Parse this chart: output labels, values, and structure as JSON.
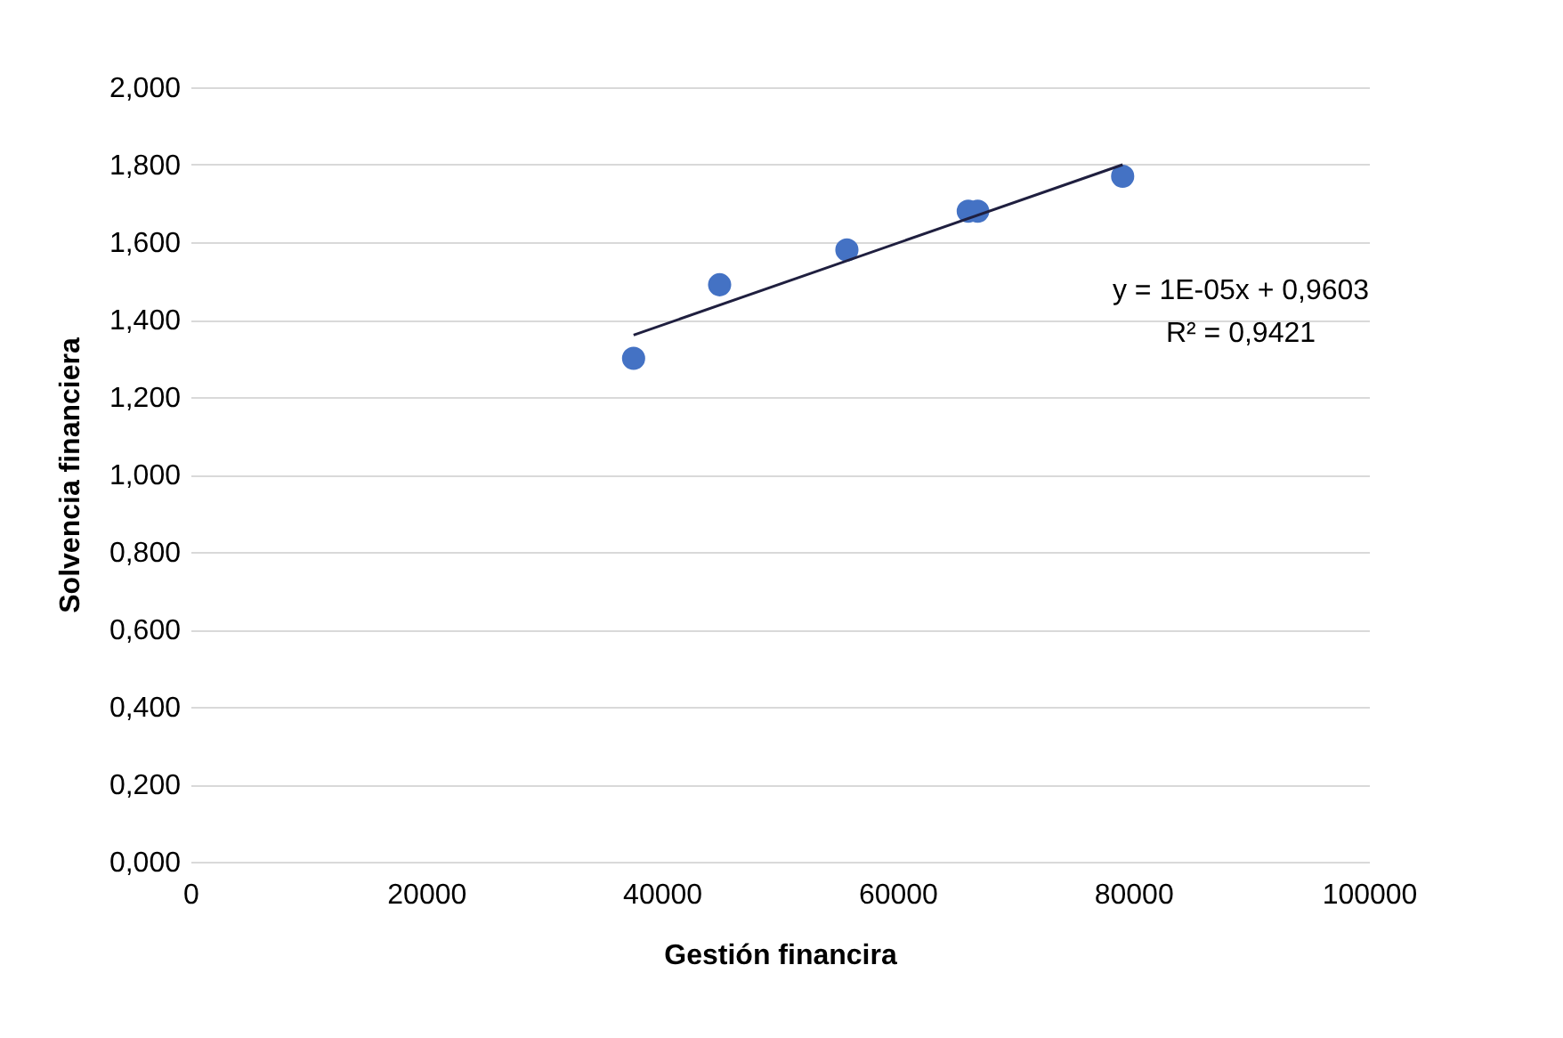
{
  "chart_data": {
    "type": "scatter",
    "xlabel": "Gestión financira",
    "ylabel": "Solvencia financiera",
    "x": [
      37600,
      44900,
      55700,
      66000,
      66800,
      79100
    ],
    "series": [
      {
        "color": "#4472c4",
        "marker": "circle",
        "values": [
          1.3,
          1.49,
          1.58,
          1.68,
          1.68,
          1.77
        ]
      },
      {
        "type": "line",
        "color": "#1f1f3f",
        "marker": "none",
        "x": [
          37600,
          79100
        ],
        "values": [
          1.36,
          1.8
        ]
      }
    ],
    "annotations": [
      "y = 1E-05x + 0,9603",
      "R² = 0,9421"
    ],
    "xlim": [
      0,
      100000
    ],
    "xticks": [
      0,
      20000,
      40000,
      60000,
      80000,
      100000
    ],
    "ylim": [
      0,
      2
    ],
    "yticks": [
      {
        "value": 0,
        "label": "0,000"
      },
      {
        "value": 0.2,
        "label": "0,200"
      },
      {
        "value": 0.4,
        "label": "0,400"
      },
      {
        "value": 0.6,
        "label": "0,600"
      },
      {
        "value": 0.8,
        "label": "0,800"
      },
      {
        "value": 1,
        "label": "1,000"
      },
      {
        "value": 1.2,
        "label": "1,200"
      },
      {
        "value": 1.4,
        "label": "1,400"
      },
      {
        "value": 1.6,
        "label": "1,600"
      },
      {
        "value": 1.8,
        "label": "1,800"
      },
      {
        "value": 2,
        "label": "2,000"
      }
    ],
    "grid": "y",
    "legend": false
  }
}
